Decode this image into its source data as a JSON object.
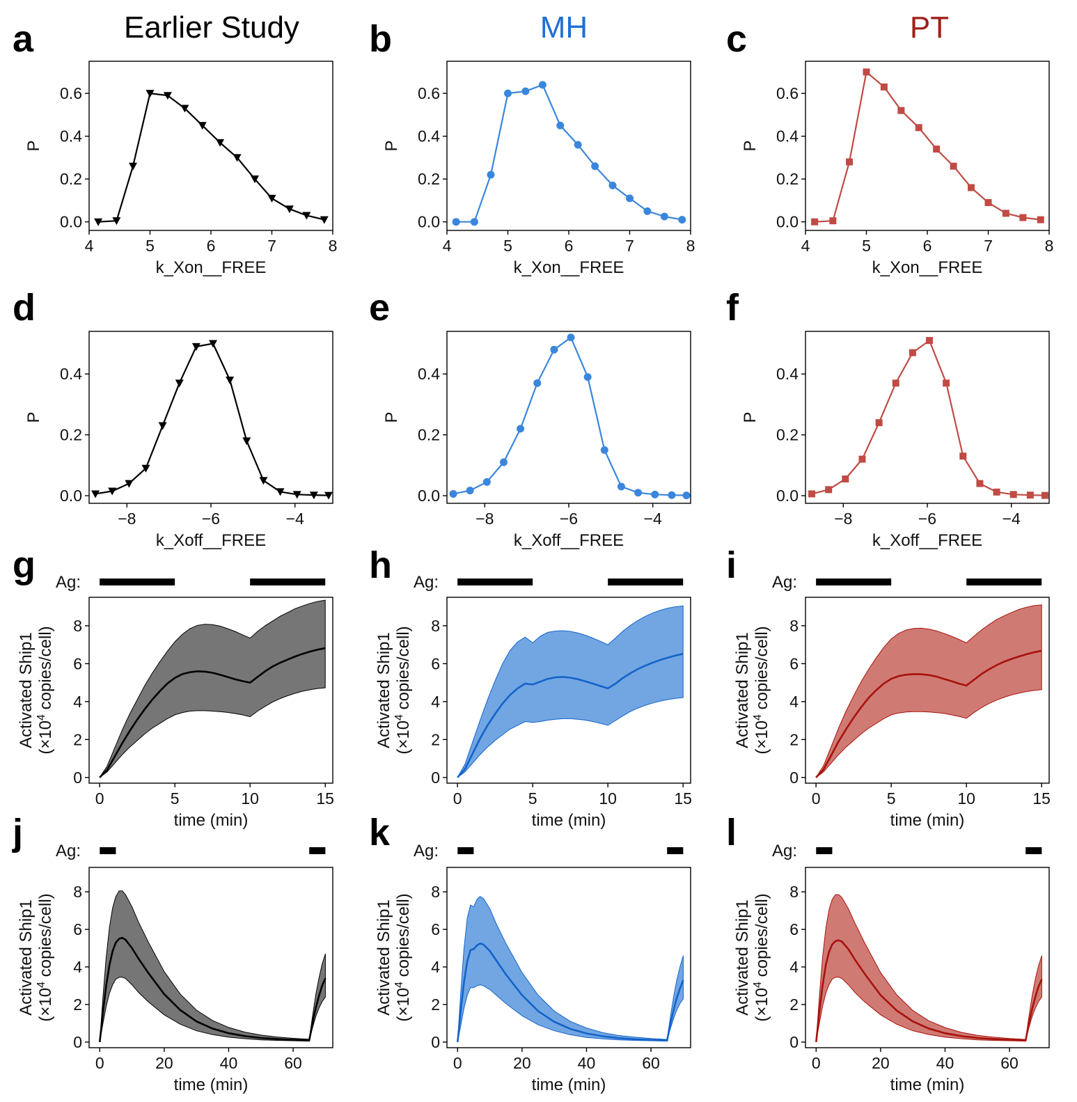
{
  "columns": [
    {
      "title": "Earlier Study",
      "color": "#000000"
    },
    {
      "title": "MH",
      "color": "#1f6fd6"
    },
    {
      "title": "PT",
      "color": "#a0201a"
    }
  ],
  "ag_label": "Ag:",
  "chart_data": [
    {
      "panel": "a",
      "type": "line",
      "title": "",
      "xlabel": "k_Xon__FREE",
      "ylabel": "P",
      "xlim": [
        4,
        8
      ],
      "ylim": [
        -0.04,
        0.75
      ],
      "xticks": [
        4,
        5,
        6,
        7,
        8
      ],
      "yticks": [
        0.0,
        0.2,
        0.4,
        0.6
      ],
      "color": "#000000",
      "marker": "triangle-down",
      "x": [
        4.15,
        4.45,
        4.72,
        5.0,
        5.29,
        5.57,
        5.86,
        6.15,
        6.43,
        6.72,
        7.0,
        7.29,
        7.57,
        7.86
      ],
      "y": [
        0.0,
        0.005,
        0.26,
        0.6,
        0.59,
        0.53,
        0.45,
        0.37,
        0.3,
        0.2,
        0.11,
        0.06,
        0.03,
        0.01
      ]
    },
    {
      "panel": "b",
      "type": "line",
      "title": "",
      "xlabel": "k_Xon__FREE",
      "ylabel": "P",
      "xlim": [
        4,
        8
      ],
      "ylim": [
        -0.04,
        0.75
      ],
      "xticks": [
        4,
        5,
        6,
        7,
        8
      ],
      "yticks": [
        0.0,
        0.2,
        0.4,
        0.6
      ],
      "color": "#3a86dc",
      "marker": "circle",
      "x": [
        4.15,
        4.45,
        4.72,
        5.0,
        5.29,
        5.57,
        5.86,
        6.15,
        6.43,
        6.72,
        7.0,
        7.29,
        7.57,
        7.86
      ],
      "y": [
        0.0,
        0.0,
        0.22,
        0.6,
        0.61,
        0.64,
        0.45,
        0.36,
        0.26,
        0.17,
        0.11,
        0.05,
        0.025,
        0.01
      ]
    },
    {
      "panel": "c",
      "type": "line",
      "title": "",
      "xlabel": "k_Xon__FREE",
      "ylabel": "P",
      "xlim": [
        4,
        8
      ],
      "ylim": [
        -0.04,
        0.75
      ],
      "xticks": [
        4,
        5,
        6,
        7,
        8
      ],
      "yticks": [
        0.0,
        0.2,
        0.4,
        0.6
      ],
      "color": "#c04b44",
      "marker": "square",
      "x": [
        4.15,
        4.45,
        4.72,
        5.0,
        5.29,
        5.57,
        5.86,
        6.15,
        6.43,
        6.72,
        7.0,
        7.29,
        7.57,
        7.86
      ],
      "y": [
        0.0,
        0.005,
        0.28,
        0.7,
        0.63,
        0.52,
        0.44,
        0.34,
        0.26,
        0.16,
        0.09,
        0.04,
        0.02,
        0.01
      ]
    },
    {
      "panel": "d",
      "type": "line",
      "title": "",
      "xlabel": "k_Xoff__FREE",
      "ylabel": "P",
      "xlim": [
        -8.9,
        -3.1
      ],
      "ylim": [
        -0.025,
        0.54
      ],
      "xticks": [
        -8,
        -6,
        -4
      ],
      "yticks": [
        0.0,
        0.2,
        0.4
      ],
      "color": "#000000",
      "marker": "triangle-down",
      "x": [
        -8.75,
        -8.35,
        -7.95,
        -7.55,
        -7.15,
        -6.75,
        -6.35,
        -5.95,
        -5.55,
        -5.15,
        -4.75,
        -4.35,
        -3.95,
        -3.55,
        -3.2
      ],
      "y": [
        0.006,
        0.015,
        0.04,
        0.09,
        0.23,
        0.37,
        0.49,
        0.5,
        0.38,
        0.18,
        0.05,
        0.013,
        0.004,
        0.002,
        0.001
      ]
    },
    {
      "panel": "e",
      "type": "line",
      "title": "",
      "xlabel": "k_Xoff__FREE",
      "ylabel": "P",
      "xlim": [
        -8.9,
        -3.1
      ],
      "ylim": [
        -0.025,
        0.54
      ],
      "xticks": [
        -8,
        -6,
        -4
      ],
      "yticks": [
        0.0,
        0.2,
        0.4
      ],
      "color": "#3a86dc",
      "marker": "circle",
      "x": [
        -8.75,
        -8.35,
        -7.95,
        -7.55,
        -7.15,
        -6.75,
        -6.35,
        -5.95,
        -5.55,
        -5.15,
        -4.75,
        -4.35,
        -3.95,
        -3.55,
        -3.2
      ],
      "y": [
        0.006,
        0.017,
        0.045,
        0.11,
        0.22,
        0.37,
        0.48,
        0.52,
        0.39,
        0.15,
        0.03,
        0.01,
        0.004,
        0.002,
        0.001
      ]
    },
    {
      "panel": "f",
      "type": "line",
      "title": "",
      "xlabel": "k_Xoff__FREE",
      "ylabel": "P",
      "xlim": [
        -8.9,
        -3.1
      ],
      "ylim": [
        -0.025,
        0.54
      ],
      "xticks": [
        -8,
        -6,
        -4
      ],
      "yticks": [
        0.0,
        0.2,
        0.4
      ],
      "color": "#c04b44",
      "marker": "square",
      "x": [
        -8.75,
        -8.35,
        -7.95,
        -7.55,
        -7.15,
        -6.75,
        -6.35,
        -5.95,
        -5.55,
        -5.15,
        -4.75,
        -4.35,
        -3.95,
        -3.55,
        -3.2
      ],
      "y": [
        0.006,
        0.02,
        0.055,
        0.12,
        0.24,
        0.37,
        0.47,
        0.51,
        0.37,
        0.13,
        0.04,
        0.012,
        0.004,
        0.002,
        0.001
      ]
    },
    {
      "panel": "g",
      "type": "area",
      "title": "",
      "xlabel": "time (min)",
      "ylabel": "Activated Ship1",
      "ylabel2": "(×10<sup>4</sup> copies/cell)",
      "xlim": [
        -0.7,
        15.5
      ],
      "ylim": [
        -0.3,
        9.5
      ],
      "xticks": [
        0,
        5,
        10,
        15
      ],
      "yticks": [
        0,
        2,
        4,
        6,
        8
      ],
      "color": "#000000",
      "fill": "#767676",
      "ag_on": [
        [
          0,
          5
        ],
        [
          10,
          15
        ]
      ],
      "t": [
        0,
        0.5,
        1,
        1.5,
        2,
        2.5,
        3,
        3.5,
        4,
        4.5,
        5,
        5.5,
        6,
        6.5,
        7,
        7.5,
        8,
        8.5,
        9,
        9.5,
        10,
        10.5,
        11,
        11.5,
        12,
        12.5,
        13,
        13.5,
        14,
        14.5,
        15
      ],
      "mean": [
        0,
        0.4,
        1.1,
        1.8,
        2.45,
        3.05,
        3.6,
        4.1,
        4.55,
        4.95,
        5.25,
        5.45,
        5.55,
        5.6,
        5.58,
        5.52,
        5.42,
        5.3,
        5.18,
        5.08,
        5.0,
        5.3,
        5.6,
        5.85,
        6.05,
        6.22,
        6.38,
        6.52,
        6.64,
        6.74,
        6.82
      ],
      "lower": [
        0,
        0.3,
        0.75,
        1.2,
        1.6,
        1.95,
        2.3,
        2.6,
        2.85,
        3.1,
        3.3,
        3.42,
        3.5,
        3.52,
        3.52,
        3.5,
        3.47,
        3.43,
        3.37,
        3.3,
        3.2,
        3.5,
        3.75,
        3.98,
        4.16,
        4.31,
        4.44,
        4.55,
        4.63,
        4.69,
        4.73
      ],
      "upper": [
        0,
        0.6,
        1.55,
        2.5,
        3.35,
        4.1,
        4.85,
        5.5,
        6.1,
        6.65,
        7.15,
        7.55,
        7.85,
        8.02,
        8.08,
        8.06,
        7.98,
        7.85,
        7.7,
        7.52,
        7.35,
        7.7,
        8.0,
        8.25,
        8.5,
        8.7,
        8.9,
        9.05,
        9.18,
        9.28,
        9.35
      ]
    },
    {
      "panel": "h",
      "type": "area",
      "title": "",
      "xlabel": "time (min)",
      "ylabel": "Activated Ship1",
      "ylabel2": "(×10<sup>4</sup> copies/cell)",
      "xlim": [
        -0.7,
        15.5
      ],
      "ylim": [
        -0.3,
        9.5
      ],
      "xticks": [
        0,
        5,
        10,
        15
      ],
      "yticks": [
        0,
        2,
        4,
        6,
        8
      ],
      "color": "#1463c8",
      "fill": "#71a6e3",
      "ag_on": [
        [
          0,
          5
        ],
        [
          10,
          15
        ]
      ],
      "t": [
        0,
        0.5,
        1,
        1.5,
        2,
        2.5,
        3,
        3.5,
        4,
        4.5,
        5,
        5.5,
        6,
        6.5,
        7,
        7.5,
        8,
        8.5,
        9,
        9.5,
        10,
        10.5,
        11,
        11.5,
        12,
        12.5,
        13,
        13.5,
        14,
        14.5,
        15
      ],
      "mean": [
        0,
        0.45,
        1.25,
        2.05,
        2.75,
        3.35,
        3.9,
        4.35,
        4.7,
        4.95,
        4.9,
        5.05,
        5.2,
        5.28,
        5.3,
        5.26,
        5.18,
        5.07,
        4.95,
        4.82,
        4.7,
        4.95,
        5.25,
        5.5,
        5.72,
        5.9,
        6.06,
        6.2,
        6.32,
        6.43,
        6.52
      ],
      "lower": [
        0,
        0.3,
        0.75,
        1.2,
        1.6,
        1.95,
        2.25,
        2.55,
        2.75,
        2.95,
        2.9,
        2.95,
        3.02,
        3.07,
        3.1,
        3.1,
        3.07,
        3.02,
        2.95,
        2.85,
        2.75,
        3.0,
        3.25,
        3.48,
        3.66,
        3.81,
        3.93,
        4.03,
        4.11,
        4.17,
        4.21
      ],
      "upper": [
        0,
        0.7,
        1.85,
        3.0,
        4.1,
        5.1,
        6.0,
        6.7,
        7.15,
        7.4,
        7.1,
        7.45,
        7.65,
        7.72,
        7.74,
        7.7,
        7.62,
        7.5,
        7.35,
        7.18,
        7.0,
        7.35,
        7.72,
        8.02,
        8.28,
        8.5,
        8.68,
        8.82,
        8.93,
        9.0,
        9.05
      ]
    },
    {
      "panel": "i",
      "type": "area",
      "title": "",
      "xlabel": "time (min)",
      "ylabel": "Activated Ship1",
      "ylabel2": "(×10<sup>4</sup> copies/cell)",
      "xlim": [
        -0.7,
        15.5
      ],
      "ylim": [
        -0.3,
        9.5
      ],
      "xticks": [
        0,
        5,
        10,
        15
      ],
      "yticks": [
        0,
        2,
        4,
        6,
        8
      ],
      "color": "#a8120c",
      "fill": "#d07a74",
      "ag_on": [
        [
          0,
          5
        ],
        [
          10,
          15
        ]
      ],
      "t": [
        0,
        0.5,
        1,
        1.5,
        2,
        2.5,
        3,
        3.5,
        4,
        4.5,
        5,
        5.5,
        6,
        6.5,
        7,
        7.5,
        8,
        8.5,
        9,
        9.5,
        10,
        10.5,
        11,
        11.5,
        12,
        12.5,
        13,
        13.5,
        14,
        14.5,
        15
      ],
      "mean": [
        0,
        0.42,
        1.15,
        1.9,
        2.55,
        3.15,
        3.7,
        4.2,
        4.6,
        4.95,
        5.2,
        5.35,
        5.42,
        5.45,
        5.44,
        5.4,
        5.32,
        5.2,
        5.08,
        4.95,
        4.85,
        5.15,
        5.45,
        5.7,
        5.92,
        6.1,
        6.25,
        6.38,
        6.5,
        6.6,
        6.68
      ],
      "lower": [
        0,
        0.3,
        0.75,
        1.2,
        1.6,
        1.95,
        2.3,
        2.6,
        2.85,
        3.1,
        3.3,
        3.4,
        3.45,
        3.47,
        3.47,
        3.45,
        3.42,
        3.38,
        3.3,
        3.22,
        3.12,
        3.42,
        3.68,
        3.9,
        4.08,
        4.23,
        4.35,
        4.45,
        4.53,
        4.59,
        4.63
      ],
      "upper": [
        0,
        0.62,
        1.6,
        2.6,
        3.5,
        4.3,
        5.05,
        5.7,
        6.3,
        6.85,
        7.3,
        7.6,
        7.78,
        7.86,
        7.87,
        7.82,
        7.73,
        7.6,
        7.45,
        7.28,
        7.1,
        7.45,
        7.78,
        8.06,
        8.32,
        8.52,
        8.7,
        8.86,
        8.98,
        9.06,
        9.1
      ]
    },
    {
      "panel": "j",
      "type": "area",
      "title": "",
      "xlabel": "time (min)",
      "ylabel": "Activated Ship1",
      "ylabel2": "(×10<sup>4</sup> copies/cell)",
      "xlim": [
        -3.3,
        72.3
      ],
      "ylim": [
        -0.3,
        9.3
      ],
      "xticks": [
        0,
        20,
        40,
        60
      ],
      "yticks": [
        0,
        2,
        4,
        6,
        8
      ],
      "color": "#000000",
      "fill": "#767676",
      "ag_on": [
        [
          0,
          5
        ],
        [
          65,
          70
        ]
      ],
      "t": [
        0,
        1,
        2,
        3,
        4,
        5,
        6,
        7,
        8,
        10,
        12,
        15,
        20,
        25,
        30,
        35,
        40,
        45,
        50,
        55,
        60,
        65,
        66,
        67,
        68,
        69,
        70
      ],
      "mean": [
        0,
        1.6,
        3.0,
        4.1,
        4.85,
        5.3,
        5.5,
        5.55,
        5.45,
        5.0,
        4.45,
        3.7,
        2.55,
        1.7,
        1.1,
        0.72,
        0.47,
        0.32,
        0.22,
        0.16,
        0.12,
        0.09,
        1.0,
        1.8,
        2.45,
        3.0,
        3.4
      ],
      "lower": [
        0,
        1.0,
        1.9,
        2.6,
        3.05,
        3.35,
        3.45,
        3.45,
        3.38,
        3.05,
        2.65,
        2.15,
        1.45,
        0.95,
        0.6,
        0.4,
        0.26,
        0.18,
        0.12,
        0.09,
        0.07,
        0.05,
        0.75,
        1.35,
        1.8,
        2.15,
        2.4
      ],
      "upper": [
        0,
        2.4,
        4.5,
        6.1,
        7.15,
        7.75,
        8.05,
        8.05,
        7.85,
        7.2,
        6.4,
        5.35,
        3.75,
        2.55,
        1.7,
        1.15,
        0.78,
        0.53,
        0.37,
        0.27,
        0.2,
        0.15,
        1.35,
        2.5,
        3.4,
        4.15,
        4.7
      ]
    },
    {
      "panel": "k",
      "type": "area",
      "title": "",
      "xlabel": "time (min)",
      "ylabel": "Activated Ship1",
      "ylabel2": "(×10<sup>4</sup> copies/cell)",
      "xlim": [
        -3.3,
        72.3
      ],
      "ylim": [
        -0.3,
        9.3
      ],
      "xticks": [
        0,
        20,
        40,
        60
      ],
      "yticks": [
        0,
        2,
        4,
        6,
        8
      ],
      "color": "#1463c8",
      "fill": "#71a6e3",
      "ag_on": [
        [
          0,
          5
        ],
        [
          65,
          70
        ]
      ],
      "t": [
        0,
        1,
        2,
        3,
        4,
        5,
        6,
        7,
        8,
        10,
        12,
        15,
        20,
        25,
        30,
        35,
        40,
        45,
        50,
        55,
        60,
        65,
        66,
        67,
        68,
        69,
        70
      ],
      "mean": [
        0,
        1.7,
        3.2,
        4.3,
        4.9,
        4.95,
        5.15,
        5.25,
        5.2,
        4.85,
        4.35,
        3.6,
        2.5,
        1.65,
        1.08,
        0.7,
        0.46,
        0.31,
        0.21,
        0.15,
        0.11,
        0.08,
        0.95,
        1.7,
        2.35,
        2.85,
        3.3
      ],
      "lower": [
        0,
        0.9,
        1.8,
        2.5,
        2.9,
        2.9,
        3.0,
        3.05,
        3.0,
        2.8,
        2.5,
        2.05,
        1.4,
        0.92,
        0.6,
        0.39,
        0.25,
        0.17,
        0.12,
        0.09,
        0.07,
        0.05,
        0.7,
        1.25,
        1.7,
        2.05,
        2.3
      ],
      "upper": [
        0,
        2.7,
        5.0,
        6.6,
        7.3,
        7.2,
        7.6,
        7.75,
        7.65,
        7.1,
        6.3,
        5.25,
        3.7,
        2.5,
        1.65,
        1.1,
        0.75,
        0.5,
        0.35,
        0.26,
        0.19,
        0.14,
        1.3,
        2.4,
        3.3,
        4.0,
        4.6
      ]
    },
    {
      "panel": "l",
      "type": "area",
      "title": "",
      "xlabel": "time (min)",
      "ylabel": "Activated Ship1",
      "ylabel2": "(×10<sup>4</sup> copies/cell)",
      "xlim": [
        -3.3,
        72.3
      ],
      "ylim": [
        -0.3,
        9.3
      ],
      "xticks": [
        0,
        20,
        40,
        60
      ],
      "yticks": [
        0,
        2,
        4,
        6,
        8
      ],
      "color": "#a8120c",
      "fill": "#d07a74",
      "ag_on": [
        [
          0,
          5
        ],
        [
          65,
          70
        ]
      ],
      "t": [
        0,
        1,
        2,
        3,
        4,
        5,
        6,
        7,
        8,
        10,
        12,
        15,
        20,
        25,
        30,
        35,
        40,
        45,
        50,
        55,
        60,
        65,
        66,
        67,
        68,
        69,
        70
      ],
      "mean": [
        0,
        1.6,
        3.0,
        4.1,
        4.8,
        5.2,
        5.38,
        5.42,
        5.35,
        4.95,
        4.4,
        3.65,
        2.5,
        1.68,
        1.1,
        0.72,
        0.47,
        0.32,
        0.22,
        0.16,
        0.12,
        0.09,
        0.98,
        1.75,
        2.4,
        2.95,
        3.35
      ],
      "lower": [
        0,
        1.0,
        1.9,
        2.6,
        3.05,
        3.35,
        3.45,
        3.45,
        3.38,
        3.05,
        2.65,
        2.15,
        1.45,
        0.95,
        0.6,
        0.4,
        0.26,
        0.18,
        0.12,
        0.09,
        0.07,
        0.05,
        0.75,
        1.35,
        1.8,
        2.15,
        2.4
      ],
      "upper": [
        0,
        2.4,
        4.5,
        6.05,
        7.05,
        7.6,
        7.85,
        7.85,
        7.7,
        7.1,
        6.35,
        5.3,
        3.7,
        2.52,
        1.68,
        1.13,
        0.77,
        0.52,
        0.36,
        0.26,
        0.19,
        0.14,
        1.32,
        2.45,
        3.35,
        4.05,
        4.6
      ]
    }
  ]
}
